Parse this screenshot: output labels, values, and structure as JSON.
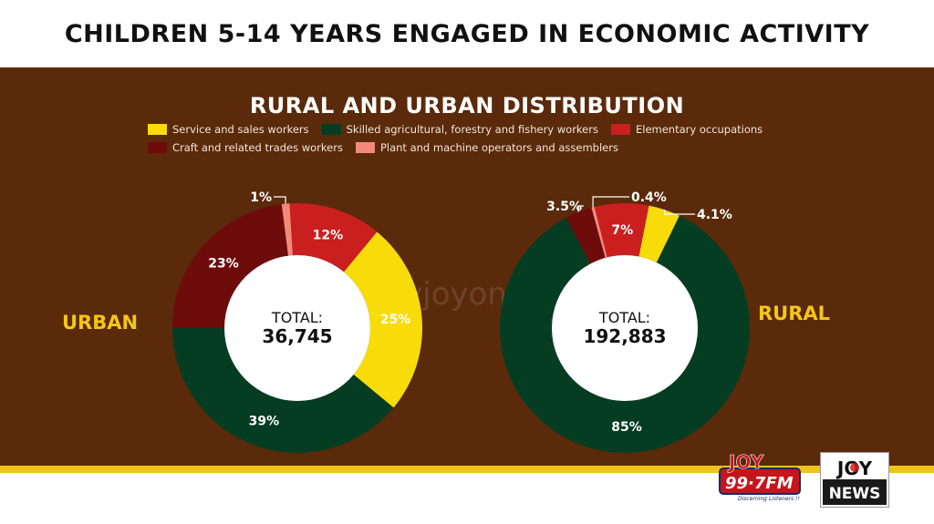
{
  "header": {
    "title": "CHILDREN 5-14 YEARS ENGAGED IN ECONOMIC ACTIVITY"
  },
  "subtitle": "RURAL AND URBAN DISTRIBUTION",
  "legend": [
    {
      "label": "Service and sales workers",
      "color": "#f7dc0a"
    },
    {
      "label": "Skilled agricultural, forestry and fishery workers",
      "color": "#053d23"
    },
    {
      "label": "Elementary occupations",
      "color": "#c91f1f"
    },
    {
      "label": "Craft and related trades workers",
      "color": "#6e0b0b"
    },
    {
      "label": "Plant and machine operators and assemblers",
      "color": "#f4897b"
    }
  ],
  "urban": {
    "side_label": "URBAN",
    "total_label": "TOTAL:",
    "total_value": "36,745"
  },
  "rural": {
    "side_label": "RURAL",
    "total_label": "TOTAL:",
    "total_value": "192,883"
  },
  "watermark": "myjoyonline.com",
  "logos": {
    "joy_fm_text": "JOY",
    "joy_fm_freq": "99·7FM",
    "joy_fm_tagline": "Discerning Listeners !!",
    "joy_news_top": "JOY",
    "joy_news_bottom": "NEWS"
  },
  "chart_data": [
    {
      "type": "pie",
      "title": "URBAN",
      "total": 36745,
      "slices": [
        {
          "name": "Elementary occupations",
          "value": 12,
          "label": "12%",
          "color": "#c91f1f"
        },
        {
          "name": "Service and sales workers",
          "value": 25,
          "label": "25%",
          "color": "#f7dc0a"
        },
        {
          "name": "Skilled agricultural, forestry and fishery workers",
          "value": 39,
          "label": "39%",
          "color": "#053d23"
        },
        {
          "name": "Craft and related trades workers",
          "value": 23,
          "label": "23%",
          "color": "#6e0b0b"
        },
        {
          "name": "Plant and machine operators and assemblers",
          "value": 1,
          "label": "1%",
          "color": "#f4897b"
        }
      ]
    },
    {
      "type": "pie",
      "title": "RURAL",
      "total": 192883,
      "slices": [
        {
          "name": "Elementary occupations",
          "value": 7,
          "label": "7%",
          "color": "#c91f1f"
        },
        {
          "name": "Service and sales workers",
          "value": 4.1,
          "label": "4.1%",
          "color": "#f7dc0a"
        },
        {
          "name": "Skilled agricultural, forestry and fishery workers",
          "value": 85,
          "label": "85%",
          "color": "#053d23"
        },
        {
          "name": "Craft and related trades workers",
          "value": 3.5,
          "label": "3.5%",
          "color": "#6e0b0b"
        },
        {
          "name": "Plant and machine operators and assemblers",
          "value": 0.4,
          "label": "0.4%",
          "color": "#f4897b"
        }
      ]
    }
  ]
}
